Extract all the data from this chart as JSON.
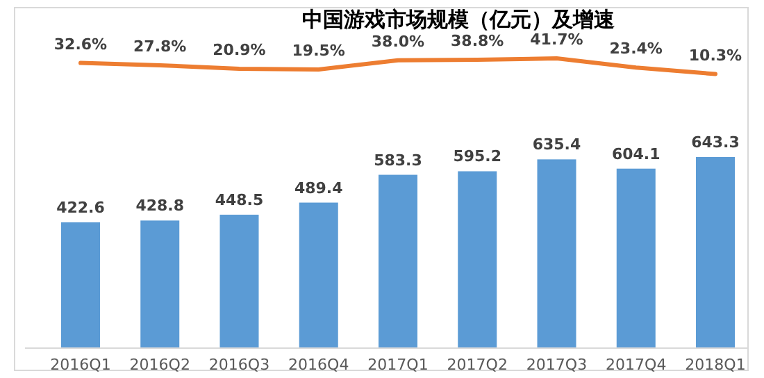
{
  "chart_data": [
    {
      "type": "bar",
      "color": "#5b9bd5",
      "categories": [
        "2016Q1",
        "2016Q2",
        "2016Q3",
        "2016Q4",
        "2017Q1",
        "2017Q2",
        "2017Q3",
        "2017Q4",
        "2018Q1"
      ],
      "values": [
        422.6,
        428.8,
        448.5,
        489.4,
        583.3,
        595.2,
        635.4,
        604.1,
        643.3
      ],
      "value_labels": [
        "422.6",
        "428.8",
        "448.5",
        "489.4",
        "583.3",
        "595.2",
        "635.4",
        "604.1",
        "643.3"
      ]
    },
    {
      "type": "line",
      "title": "中国游戏市场规模（亿元）及增速",
      "color": "#ed7d31",
      "categories": [
        null,
        null,
        null,
        null,
        null,
        null,
        null,
        null,
        null
      ],
      "values": [
        32.6,
        27.8,
        20.9,
        19.5,
        38.0,
        38.8,
        41.7,
        23.4,
        10.3
      ],
      "value_labels": [
        "32.6%",
        "27.8%",
        "20.9%",
        "19.5%",
        "38.0%",
        "38.8%",
        "41.7%",
        "23.4%",
        "10.3%"
      ]
    }
  ]
}
